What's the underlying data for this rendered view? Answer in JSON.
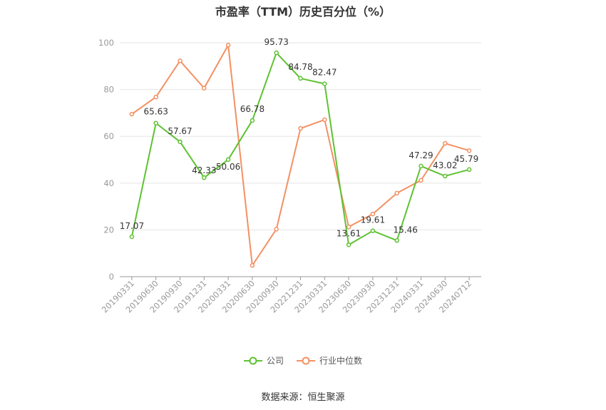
{
  "chart_data": {
    "type": "line",
    "title": "市盈率（TTM）历史百分位（%）",
    "source": "数据来源：恒生聚源",
    "categories": [
      "20190331",
      "20190630",
      "20190930",
      "20191231",
      "20200331",
      "20200630",
      "20200930",
      "20221231",
      "20230331",
      "20230630",
      "20230930",
      "20231231",
      "20240331",
      "20240630",
      "20240712"
    ],
    "ylim": [
      0,
      100
    ],
    "yticks": [
      0,
      20,
      40,
      60,
      80,
      100
    ],
    "grid": true,
    "legend_placement": "bottom-center",
    "series": [
      {
        "name": "公司",
        "color": "#5ec232",
        "values": [
          17.07,
          65.63,
          57.67,
          42.33,
          50.06,
          66.78,
          95.73,
          84.78,
          82.47,
          13.61,
          19.61,
          15.46,
          47.29,
          43.02,
          45.79
        ],
        "labels": [
          "17.07",
          "65.63",
          "57.67",
          "42.33",
          "50.06",
          "66.78",
          "95.73",
          "84.78",
          "82.47",
          "13.61",
          "19.61",
          "15.46",
          "47.29",
          "43.02",
          "45.79"
        ]
      },
      {
        "name": "行业中位数",
        "color": "#f39062",
        "values": [
          69.5,
          76.8,
          92.3,
          80.6,
          99.0,
          4.8,
          20.3,
          63.4,
          67.1,
          21.3,
          26.8,
          35.7,
          41.2,
          57.0,
          53.9
        ]
      }
    ]
  }
}
